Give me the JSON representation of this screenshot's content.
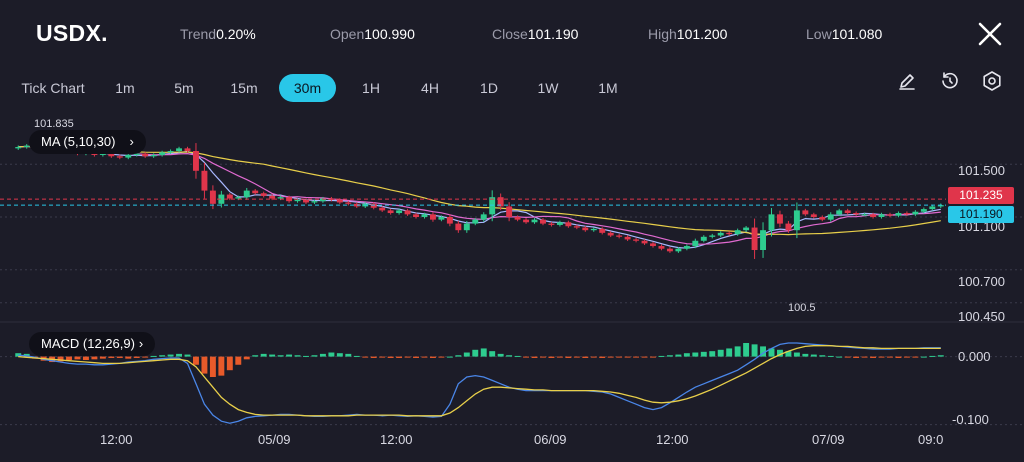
{
  "header": {
    "symbol": "USDX.",
    "stats": [
      {
        "label": "Trend",
        "value": "0.20%"
      },
      {
        "label": "Open",
        "value": "100.990"
      },
      {
        "label": "Close",
        "value": "101.190"
      },
      {
        "label": "High",
        "value": "101.200"
      },
      {
        "label": "Low",
        "value": "101.080"
      }
    ]
  },
  "timeframes": [
    "Tick Chart",
    "1m",
    "5m",
    "15m",
    "30m",
    "1H",
    "4H",
    "1D",
    "1W",
    "1M"
  ],
  "active_timeframe": "30m",
  "tools": [
    "draw-icon",
    "reset-icon",
    "settings-icon"
  ],
  "indicators": {
    "ma_label": "MA (5,10,30)",
    "macd_label": "MACD (12,26,9)"
  },
  "markers": {
    "high_label": "101.835",
    "low_label": "100.5"
  },
  "price_badges": {
    "ask": {
      "value": "101.235",
      "color": "#e0354b"
    },
    "bid": {
      "value": "101.190",
      "color": "#29c7e8"
    }
  },
  "chart_data": {
    "type": "line",
    "price_axis": {
      "ticks": [
        {
          "label": "101.500",
          "value": 101.5
        },
        {
          "label": "101.100",
          "value": 101.1
        },
        {
          "label": "100.700",
          "value": 100.7
        },
        {
          "label": "100.450",
          "value": 100.45
        }
      ],
      "range": [
        100.35,
        101.85
      ]
    },
    "macd_axis": {
      "ticks": [
        {
          "label": "0.000",
          "value": 0.0
        },
        {
          "label": "-0.100",
          "value": -0.1
        }
      ],
      "range": [
        -0.105,
        0.045
      ]
    },
    "time_labels": [
      {
        "label": "12:00",
        "pos": 0.107
      },
      {
        "label": "05/09",
        "pos": 0.248
      },
      {
        "label": "12:00",
        "pos": 0.389
      },
      {
        "label": "06/09",
        "pos": 0.53
      },
      {
        "label": "12:00",
        "pos": 0.671
      },
      {
        "label": "07/09",
        "pos": 0.812
      },
      {
        "label": "09:0",
        "pos": 0.93
      }
    ],
    "price_path": [
      101.63,
      101.64,
      101.62,
      101.6,
      101.62,
      101.61,
      101.6,
      101.58,
      101.59,
      101.57,
      101.58,
      101.56,
      101.55,
      101.57,
      101.58,
      101.56,
      101.57,
      101.59,
      101.6,
      101.62,
      101.6,
      101.45,
      101.3,
      101.2,
      101.27,
      101.24,
      101.25,
      101.3,
      101.28,
      101.26,
      101.24,
      101.25,
      101.22,
      101.23,
      101.21,
      101.22,
      101.24,
      101.23,
      101.21,
      101.2,
      101.18,
      101.2,
      101.17,
      101.15,
      101.13,
      101.15,
      101.12,
      101.1,
      101.12,
      101.08,
      101.1,
      101.05,
      101.0,
      101.05,
      101.08,
      101.12,
      101.25,
      101.18,
      101.1,
      101.08,
      101.06,
      101.08,
      101.05,
      101.04,
      101.06,
      101.03,
      101.02,
      101.0,
      101.01,
      100.98,
      100.96,
      100.95,
      100.93,
      100.92,
      100.9,
      100.88,
      100.86,
      100.84,
      100.86,
      100.88,
      100.92,
      100.95,
      100.96,
      100.98,
      100.97,
      101.0,
      101.02,
      100.85,
      101.0,
      101.12,
      101.05,
      101.0,
      101.15,
      101.12,
      101.1,
      101.08,
      101.12,
      101.15,
      101.13,
      101.12,
      101.12,
      101.1,
      101.12,
      101.11,
      101.13,
      101.12,
      101.14,
      101.16,
      101.18,
      101.19
    ],
    "macd_hist": [
      0.005,
      0.004,
      -0.003,
      -0.006,
      -0.008,
      -0.007,
      -0.005,
      -0.004,
      -0.005,
      -0.004,
      -0.003,
      -0.002,
      -0.002,
      -0.003,
      -0.002,
      -0.001,
      0.001,
      0.002,
      0.003,
      0.004,
      0.003,
      -0.012,
      -0.025,
      -0.03,
      -0.028,
      -0.02,
      -0.012,
      -0.004,
      0.002,
      0.004,
      0.003,
      0.002,
      0.003,
      0.002,
      0.001,
      0.002,
      0.004,
      0.006,
      0.005,
      0.004,
      0.001,
      -0.001,
      -0.002,
      -0.001,
      -0.002,
      -0.002,
      -0.001,
      -0.002,
      -0.001,
      -0.002,
      -0.001,
      0.0,
      0.002,
      0.006,
      0.01,
      0.012,
      0.008,
      0.004,
      0.002,
      0.001,
      -0.001,
      -0.002,
      -0.001,
      -0.002,
      -0.001,
      -0.002,
      -0.001,
      -0.002,
      -0.001,
      -0.002,
      -0.001,
      -0.001,
      -0.001,
      -0.001,
      -0.001,
      -0.001,
      0.001,
      0.002,
      0.003,
      0.005,
      0.006,
      0.007,
      0.008,
      0.01,
      0.012,
      0.015,
      0.02,
      0.018,
      0.015,
      0.012,
      0.01,
      0.008,
      0.006,
      0.004,
      0.003,
      0.002,
      0.001,
      0.0,
      -0.001,
      -0.002,
      -0.001,
      -0.002,
      -0.001,
      -0.001,
      -0.002,
      -0.001,
      -0.001,
      0.0,
      0.001,
      0.002
    ],
    "macd_line": [
      0.002,
      0.001,
      -0.001,
      -0.004,
      -0.006,
      -0.008,
      -0.01,
      -0.011,
      -0.011,
      -0.012,
      -0.012,
      -0.011,
      -0.01,
      -0.008,
      -0.007,
      -0.006,
      -0.004,
      -0.003,
      -0.002,
      -0.002,
      -0.01,
      -0.04,
      -0.07,
      -0.086,
      -0.095,
      -0.098,
      -0.095,
      -0.09,
      -0.088,
      -0.087,
      -0.086,
      -0.085,
      -0.085,
      -0.086,
      -0.087,
      -0.088,
      -0.088,
      -0.087,
      -0.087,
      -0.086,
      -0.085,
      -0.086,
      -0.086,
      -0.087,
      -0.086,
      -0.087,
      -0.088,
      -0.087,
      -0.088,
      -0.089,
      -0.088,
      -0.07,
      -0.04,
      -0.03,
      -0.028,
      -0.03,
      -0.035,
      -0.04,
      -0.045,
      -0.048,
      -0.05,
      -0.05,
      -0.05,
      -0.05,
      -0.05,
      -0.05,
      -0.05,
      -0.05,
      -0.051,
      -0.052,
      -0.055,
      -0.06,
      -0.065,
      -0.07,
      -0.075,
      -0.078,
      -0.075,
      -0.068,
      -0.06,
      -0.052,
      -0.045,
      -0.04,
      -0.035,
      -0.03,
      -0.025,
      -0.02,
      -0.012,
      -0.004,
      0.005,
      0.012,
      0.018,
      0.02,
      0.02,
      0.019,
      0.018,
      0.017,
      0.016,
      0.015,
      0.014,
      0.013,
      0.012,
      0.011,
      0.011,
      0.011,
      0.012,
      0.012,
      0.012,
      0.013,
      0.013,
      0.013
    ],
    "signal_line": [
      0.0,
      -0.001,
      -0.002,
      -0.003,
      -0.004,
      -0.005,
      -0.006,
      -0.007,
      -0.008,
      -0.009,
      -0.01,
      -0.01,
      -0.01,
      -0.009,
      -0.008,
      -0.007,
      -0.006,
      -0.005,
      -0.004,
      -0.004,
      -0.006,
      -0.015,
      -0.03,
      -0.045,
      -0.06,
      -0.07,
      -0.078,
      -0.082,
      -0.085,
      -0.086,
      -0.086,
      -0.086,
      -0.086,
      -0.086,
      -0.087,
      -0.087,
      -0.087,
      -0.087,
      -0.087,
      -0.087,
      -0.086,
      -0.086,
      -0.086,
      -0.086,
      -0.086,
      -0.086,
      -0.087,
      -0.087,
      -0.087,
      -0.087,
      -0.087,
      -0.083,
      -0.075,
      -0.065,
      -0.055,
      -0.048,
      -0.045,
      -0.045,
      -0.046,
      -0.047,
      -0.048,
      -0.049,
      -0.049,
      -0.05,
      -0.05,
      -0.05,
      -0.05,
      -0.05,
      -0.05,
      -0.051,
      -0.052,
      -0.054,
      -0.057,
      -0.06,
      -0.064,
      -0.067,
      -0.068,
      -0.067,
      -0.065,
      -0.062,
      -0.058,
      -0.053,
      -0.048,
      -0.042,
      -0.036,
      -0.03,
      -0.024,
      -0.017,
      -0.01,
      -0.003,
      0.003,
      0.008,
      0.012,
      0.015,
      0.016,
      0.016,
      0.016,
      0.015,
      0.015,
      0.014,
      0.013,
      0.013,
      0.012,
      0.012,
      0.012,
      0.012,
      0.012,
      0.012,
      0.012,
      0.012
    ]
  }
}
